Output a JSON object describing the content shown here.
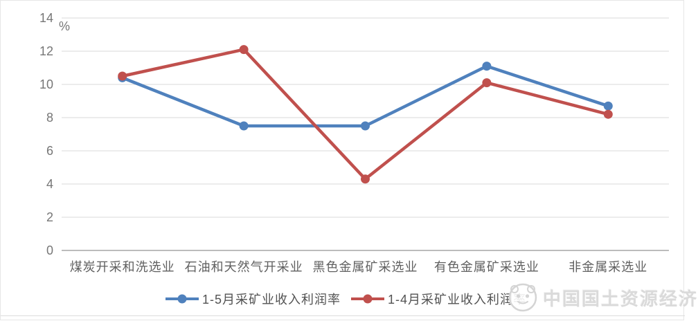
{
  "chart_data": {
    "type": "line",
    "title": "",
    "xlabel": "",
    "ylabel": "%",
    "ylim": [
      0,
      14
    ],
    "yticks": [
      0,
      2,
      4,
      6,
      8,
      10,
      12,
      14
    ],
    "grid": true,
    "legend_position": "bottom",
    "categories": [
      "煤炭开采和洗选业",
      "石油和天然气开采业",
      "黑色金属矿采选业",
      "有色金属矿采选业",
      "非金属采选业"
    ],
    "series": [
      {
        "name": "1-5月采矿业收入利润率",
        "color": "#4F81BD",
        "marker": "circle",
        "values": [
          10.4,
          7.5,
          7.5,
          11.1,
          8.7
        ]
      },
      {
        "name": "1-4月采矿业收入利润率",
        "color": "#C0504D",
        "marker": "circle",
        "values": [
          10.5,
          12.1,
          4.3,
          10.1,
          8.2
        ]
      }
    ],
    "gridline_color": "#d9d9d9",
    "axis_line_color": "#a6a6a6"
  },
  "watermark": {
    "text": "中国国土资源经济"
  }
}
